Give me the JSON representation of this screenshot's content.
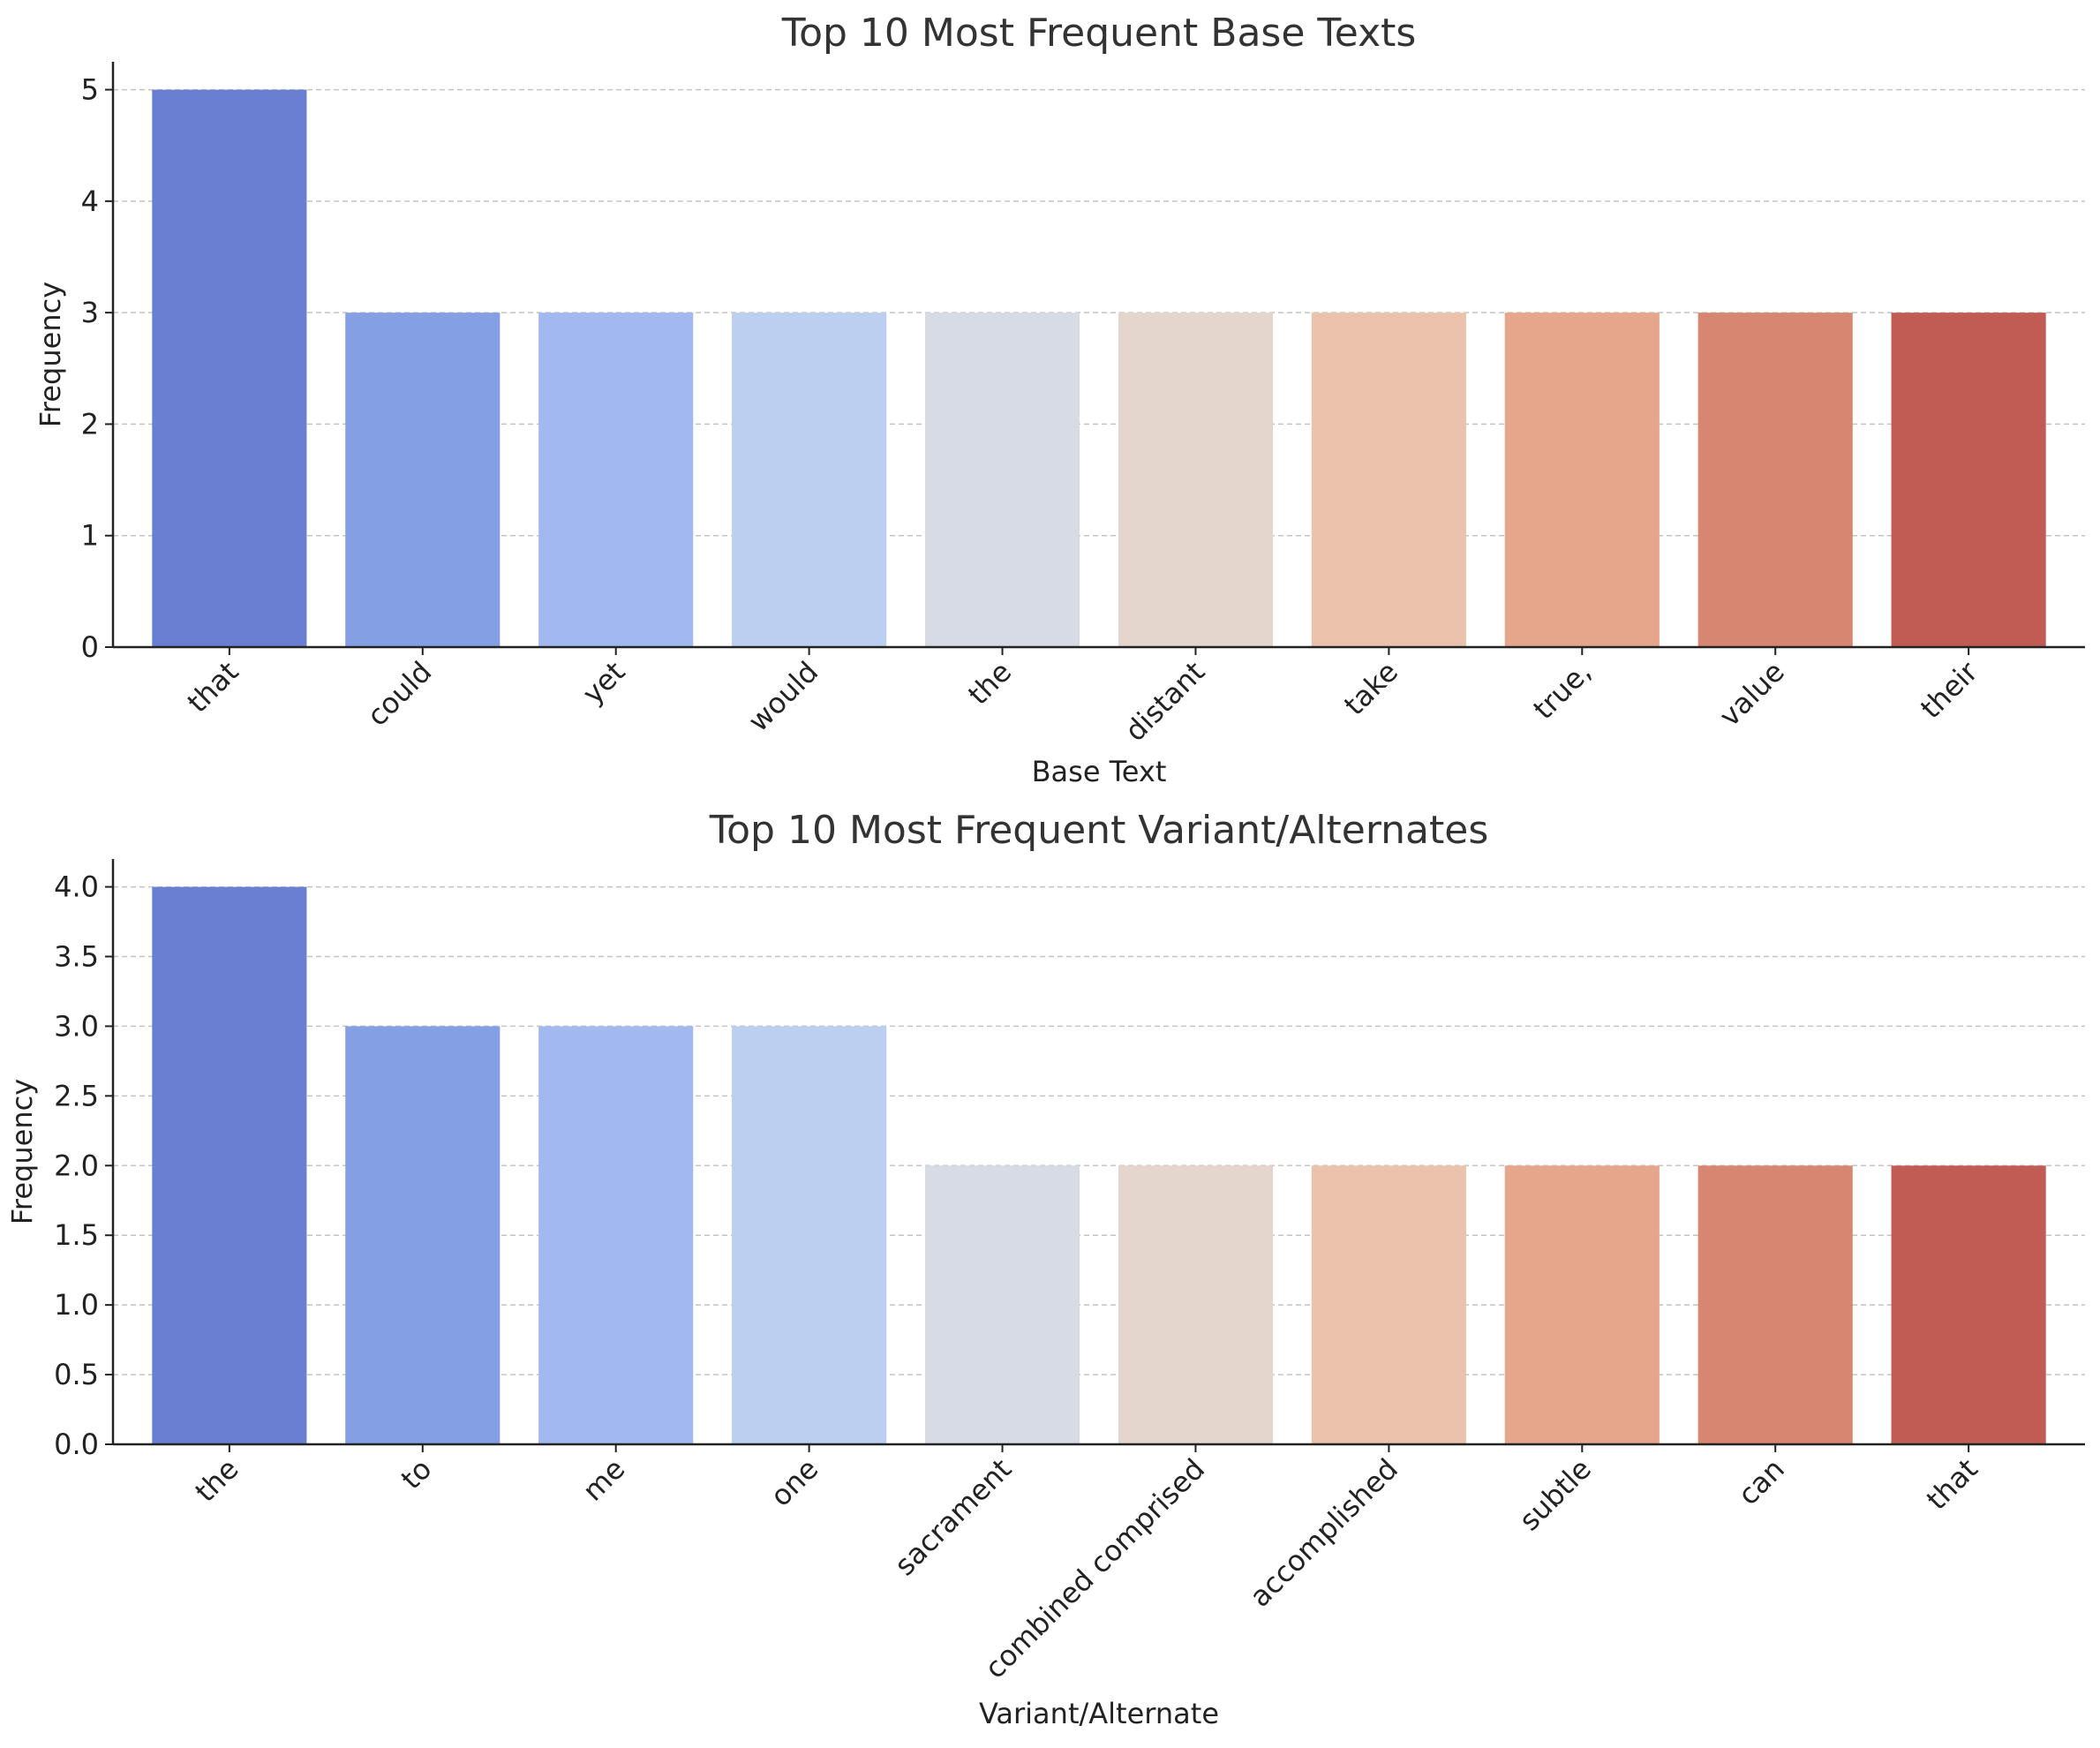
{
  "chart_data": [
    {
      "type": "bar",
      "title": "Top 10 Most Frequent Base Texts",
      "xlabel": "Base Text",
      "ylabel": "Frequency",
      "categories": [
        "that",
        "could",
        "yet",
        "would",
        "the",
        "distant",
        "take",
        "true,",
        "value",
        "their"
      ],
      "values": [
        5,
        3,
        3,
        3,
        3,
        3,
        3,
        3,
        3,
        3
      ],
      "ylim": [
        0,
        5.25
      ],
      "yticks": [
        0,
        1,
        2,
        3,
        4,
        5
      ],
      "ytick_labels": [
        "0",
        "1",
        "2",
        "3",
        "4",
        "5"
      ],
      "grid": "horizontal dashed",
      "colors": [
        "#6a7ed2",
        "#859fe4",
        "#a2b9f0",
        "#bdcff0",
        "#d6dbe5",
        "#e4d6cd",
        "#ebc3ac",
        "#e5a68c",
        "#d78771",
        "#c05c54"
      ]
    },
    {
      "type": "bar",
      "title": "Top 10 Most Frequent Variant/Alternates",
      "xlabel": "Variant/Alternate",
      "ylabel": "Frequency",
      "categories": [
        "the",
        "to",
        "me",
        "one",
        "sacrament",
        "combined comprised",
        "accomplished",
        "subtle",
        "can",
        "that"
      ],
      "values": [
        4,
        3,
        3,
        3,
        2,
        2,
        2,
        2,
        2,
        2
      ],
      "ylim": [
        0,
        4.2
      ],
      "yticks": [
        0,
        0.5,
        1,
        1.5,
        2,
        2.5,
        3,
        3.5,
        4
      ],
      "ytick_labels": [
        "0.0",
        "0.5",
        "1.0",
        "1.5",
        "2.0",
        "2.5",
        "3.0",
        "3.5",
        "4.0"
      ],
      "grid": "horizontal dashed",
      "colors": [
        "#6a7ed2",
        "#859fe4",
        "#a2b9f0",
        "#bdcff0",
        "#d6dbe5",
        "#e4d6cd",
        "#ebc3ac",
        "#e5a68c",
        "#d78771",
        "#c05c54"
      ]
    }
  ]
}
